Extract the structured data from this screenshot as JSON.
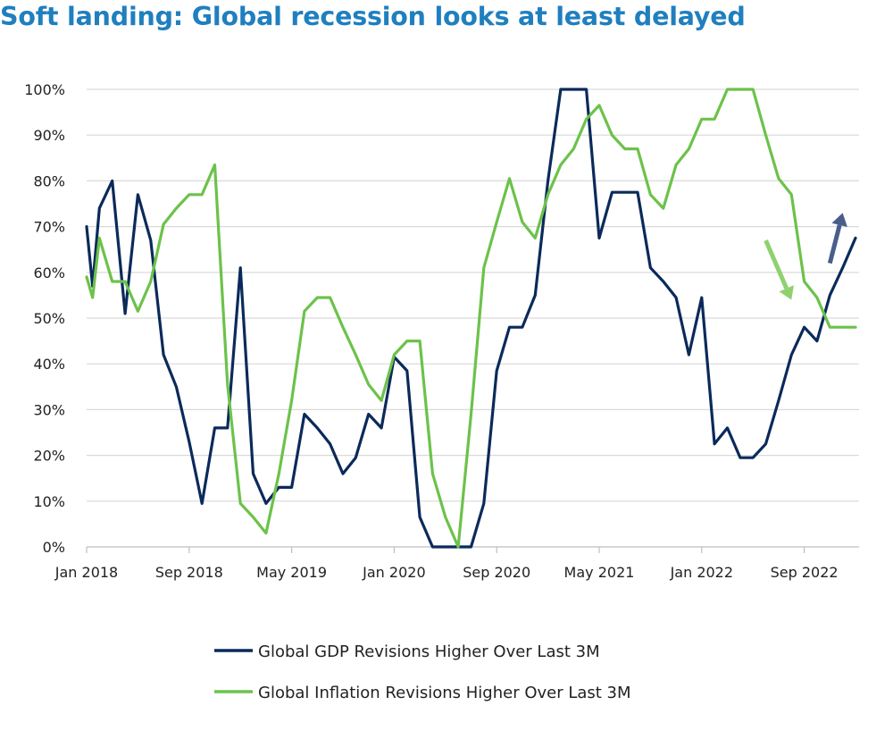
{
  "chart_data": {
    "type": "line",
    "title": "Soft landing: Global recession looks at least delayed",
    "xlabel": "",
    "ylabel": "",
    "ylim": [
      0,
      100
    ],
    "y_ticks": [
      "0%",
      "10%",
      "20%",
      "30%",
      "40%",
      "50%",
      "60%",
      "70%",
      "80%",
      "90%",
      "100%"
    ],
    "x_range": [
      "2018-01",
      "2022-12"
    ],
    "x_ticks": [
      {
        "label": "Jan 2018",
        "month": "2018-01"
      },
      {
        "label": "Sep 2018",
        "month": "2018-09"
      },
      {
        "label": "May 2019",
        "month": "2019-05"
      },
      {
        "label": "Jan 2020",
        "month": "2020-01"
      },
      {
        "label": "Sep 2020",
        "month": "2020-09"
      },
      {
        "label": "May 2021",
        "month": "2021-05"
      },
      {
        "label": "Jan 2022",
        "month": "2022-01"
      },
      {
        "label": "Sep 2022",
        "month": "2022-09"
      }
    ],
    "grid": true,
    "legend_position": "bottom",
    "series": [
      {
        "name": "Global GDP Revisions Higher Over Last 3M",
        "color": "#0B2A5B",
        "points": [
          [
            "2018-01",
            70
          ],
          [
            "2018-01-15",
            57
          ],
          [
            "2018-02",
            74
          ],
          [
            "2018-03",
            80
          ],
          [
            "2018-04",
            51
          ],
          [
            "2018-05",
            77
          ],
          [
            "2018-06",
            67
          ],
          [
            "2018-07",
            42
          ],
          [
            "2018-08",
            35
          ],
          [
            "2018-09",
            23
          ],
          [
            "2018-10",
            9.5
          ],
          [
            "2018-11",
            26
          ],
          [
            "2018-12",
            26
          ],
          [
            "2019-01",
            61
          ],
          [
            "2019-02",
            16
          ],
          [
            "2019-03",
            9.5
          ],
          [
            "2019-04",
            13
          ],
          [
            "2019-05",
            13
          ],
          [
            "2019-06",
            29
          ],
          [
            "2019-07",
            26
          ],
          [
            "2019-08",
            22.5
          ],
          [
            "2019-09",
            16
          ],
          [
            "2019-10",
            19.5
          ],
          [
            "2019-11",
            29
          ],
          [
            "2019-12",
            26
          ],
          [
            "2020-01",
            41.5
          ],
          [
            "2020-02",
            38.5
          ],
          [
            "2020-03",
            6.5
          ],
          [
            "2020-04",
            0
          ],
          [
            "2020-05",
            0
          ],
          [
            "2020-06",
            0
          ],
          [
            "2020-07",
            0
          ],
          [
            "2020-08",
            9.5
          ],
          [
            "2020-09",
            38.5
          ],
          [
            "2020-10",
            48
          ],
          [
            "2020-11",
            48
          ],
          [
            "2020-12",
            55
          ],
          [
            "2021-01",
            80
          ],
          [
            "2021-02",
            100
          ],
          [
            "2021-03",
            100
          ],
          [
            "2021-04",
            100
          ],
          [
            "2021-05",
            67.5
          ],
          [
            "2021-06",
            77.5
          ],
          [
            "2021-07",
            77.5
          ],
          [
            "2021-08",
            77.5
          ],
          [
            "2021-09",
            61
          ],
          [
            "2021-10",
            58
          ],
          [
            "2021-11",
            54.5
          ],
          [
            "2021-12",
            42
          ],
          [
            "2022-01",
            54.5
          ],
          [
            "2022-02",
            22.5
          ],
          [
            "2022-03",
            26
          ],
          [
            "2022-04",
            19.5
          ],
          [
            "2022-05",
            19.5
          ],
          [
            "2022-06",
            22.5
          ],
          [
            "2022-07",
            32
          ],
          [
            "2022-08",
            42
          ],
          [
            "2022-09",
            48
          ],
          [
            "2022-10",
            45
          ],
          [
            "2022-11",
            55
          ],
          [
            "2022-12",
            61
          ],
          [
            "2023-01",
            67.5
          ]
        ]
      },
      {
        "name": "Global Inflation Revisions Higher Over Last 3M",
        "color": "#6CC24A",
        "points": [
          [
            "2018-01",
            59
          ],
          [
            "2018-01-15",
            54.5
          ],
          [
            "2018-02",
            67.5
          ],
          [
            "2018-03",
            58
          ],
          [
            "2018-04",
            58
          ],
          [
            "2018-05",
            51.5
          ],
          [
            "2018-06",
            58
          ],
          [
            "2018-07",
            70.5
          ],
          [
            "2018-08",
            74
          ],
          [
            "2018-09",
            77
          ],
          [
            "2018-10",
            77
          ],
          [
            "2018-11",
            83.5
          ],
          [
            "2018-12",
            35.5
          ],
          [
            "2019-01",
            9.5
          ],
          [
            "2019-02",
            6.5
          ],
          [
            "2019-03",
            3
          ],
          [
            "2019-04",
            16
          ],
          [
            "2019-05",
            32
          ],
          [
            "2019-06",
            51.5
          ],
          [
            "2019-07",
            54.5
          ],
          [
            "2019-08",
            54.5
          ],
          [
            "2019-09",
            48
          ],
          [
            "2019-10",
            42
          ],
          [
            "2019-11",
            35.5
          ],
          [
            "2019-12",
            32
          ],
          [
            "2020-01",
            42
          ],
          [
            "2020-02",
            45
          ],
          [
            "2020-03",
            45
          ],
          [
            "2020-04",
            16
          ],
          [
            "2020-05",
            6.5
          ],
          [
            "2020-06",
            0
          ],
          [
            "2020-07",
            29
          ],
          [
            "2020-08",
            61
          ],
          [
            "2020-09",
            71
          ],
          [
            "2020-10",
            80.5
          ],
          [
            "2020-11",
            71
          ],
          [
            "2020-12",
            67.5
          ],
          [
            "2021-01",
            77
          ],
          [
            "2021-02",
            83.5
          ],
          [
            "2021-03",
            87
          ],
          [
            "2021-04",
            93.5
          ],
          [
            "2021-05",
            96.5
          ],
          [
            "2021-06",
            90
          ],
          [
            "2021-07",
            87
          ],
          [
            "2021-08",
            87
          ],
          [
            "2021-09",
            77
          ],
          [
            "2021-10",
            74
          ],
          [
            "2021-11",
            83.5
          ],
          [
            "2021-12",
            87
          ],
          [
            "2022-01",
            93.5
          ],
          [
            "2022-02",
            93.5
          ],
          [
            "2022-03",
            100
          ],
          [
            "2022-04",
            100
          ],
          [
            "2022-05",
            100
          ],
          [
            "2022-06",
            90
          ],
          [
            "2022-07",
            80.5
          ],
          [
            "2022-08",
            77
          ],
          [
            "2022-09",
            58
          ],
          [
            "2022-10",
            54.5
          ],
          [
            "2022-11",
            48
          ],
          [
            "2022-12",
            48
          ],
          [
            "2023-01",
            48
          ]
        ]
      }
    ],
    "annotations": [
      {
        "type": "arrow",
        "direction": "down",
        "color": "#8FD16F",
        "from": [
          "2022-06",
          67
        ],
        "to": [
          "2022-08",
          54
        ]
      },
      {
        "type": "arrow",
        "direction": "up",
        "color": "#4A5E8C",
        "from": [
          "2022-11",
          62
        ],
        "to": [
          "2022-12",
          73
        ]
      }
    ]
  }
}
